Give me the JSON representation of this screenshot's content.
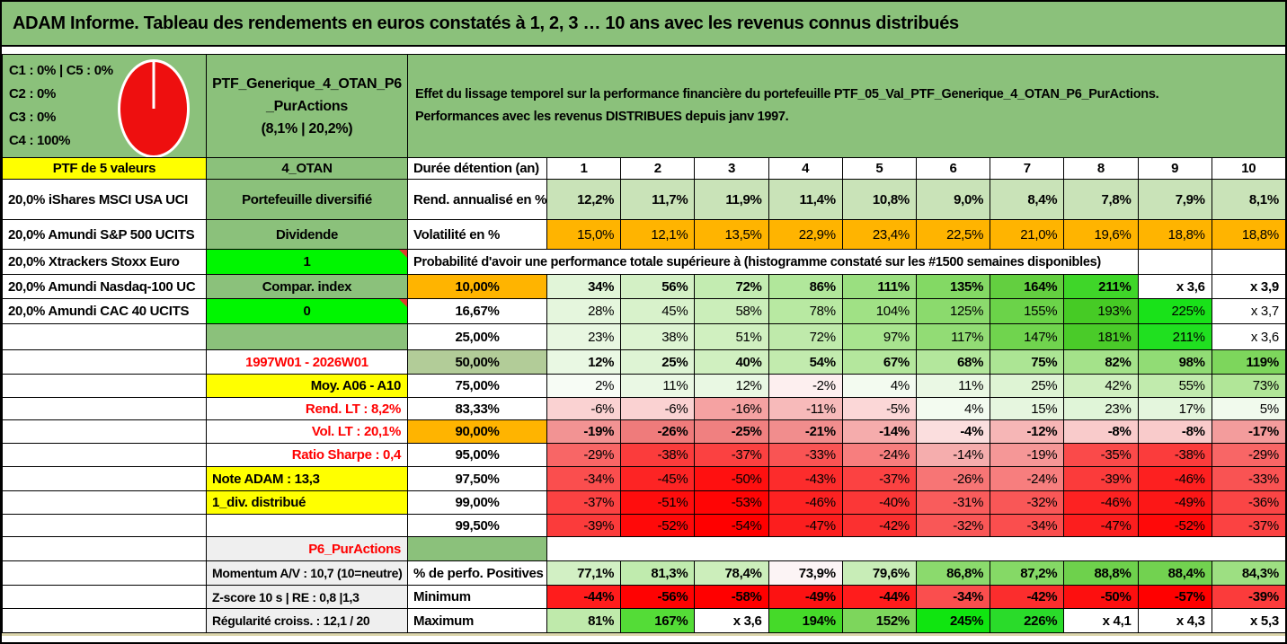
{
  "window": {
    "title": "ADAM Informe. Tableau des rendements en euros constatés à 1, 2, 3 … 10 ans avec les revenus connus distribués"
  },
  "colors": {
    "header_green": "#8BC17B",
    "bright_green": "#00F600",
    "light_green": "#C9E3B8",
    "sage_green": "#B2CC98",
    "orange": "#FFB400",
    "yellow": "#FFFF00",
    "gray": "#EFEFEF",
    "white": "#FFFFFF",
    "red_text": "#FF0000",
    "pie_red": "#EE0F0F"
  },
  "allocation": {
    "lines": [
      "C1 : 0% | C5 : 0%",
      "C2 : 0%",
      "C3 : 0%",
      "C4 : 100%"
    ],
    "pie": {
      "type": "pie",
      "segments": [
        {
          "label": "C1",
          "value": 0
        },
        {
          "label": "C2",
          "value": 0
        },
        {
          "label": "C3",
          "value": 0
        },
        {
          "label": "C4",
          "value": 100
        },
        {
          "label": "C5",
          "value": 0
        }
      ],
      "color": "#EE0F0F"
    }
  },
  "portfolio": {
    "name_lines": [
      "PTF_Generique_4_OTAN_P6",
      "_PurActions",
      "(8,1% | 20,2%)"
    ]
  },
  "description": {
    "lines": [
      "Effet du lissage temporel sur la performance financière du portefeuille PTF_05_Val_PTF_Generique_4_OTAN_P6_PurActions.",
      "Performances avec les revenus DISTRIBUES depuis janv 1997."
    ]
  },
  "table": {
    "corner": {
      "a": "PTF de 5 valeurs",
      "b": "4_OTAN",
      "c": "Durée détention (an)"
    },
    "columns": [
      "1",
      "2",
      "3",
      "4",
      "5",
      "6",
      "7",
      "8",
      "9",
      "10"
    ],
    "rows": [
      {
        "a": "20,0% iShares MSCI USA UCI",
        "b": {
          "t": "Portefeuille diversifié",
          "bg": "#8BC17B"
        },
        "c": {
          "t": "Rend. annualisé en %",
          "align": "left"
        },
        "bold": true,
        "values": [
          "12,2%",
          "11,7%",
          "11,9%",
          "11,4%",
          "10,8%",
          "9,0%",
          "8,4%",
          "7,8%",
          "7,9%",
          "8,1%"
        ],
        "bgs": [
          "#C9E3B8",
          "#C9E3B8",
          "#C9E3B8",
          "#C9E3B8",
          "#C9E3B8",
          "#C9E3B8",
          "#C9E3B8",
          "#C9E3B8",
          "#C9E3B8",
          "#C9E3B8"
        ]
      },
      {
        "a": "20,0% Amundi S&P 500 UCITS",
        "b": {
          "t": "Dividende",
          "bg": "#8BC17B"
        },
        "c": {
          "t": "Volatilité en %",
          "align": "left"
        },
        "bold": false,
        "values": [
          "15,0%",
          "12,1%",
          "13,5%",
          "22,9%",
          "23,4%",
          "22,5%",
          "21,0%",
          "19,6%",
          "18,8%",
          "18,8%"
        ],
        "bgs": [
          "#FFB400",
          "#FFB400",
          "#FFB400",
          "#FFB400",
          "#FFB400",
          "#FFB400",
          "#FFB400",
          "#FFB400",
          "#FFB400",
          "#FFB400"
        ]
      },
      {
        "a": "20,0% Xtrackers Stoxx Euro",
        "b": {
          "t": "1",
          "bg": "#00F600",
          "marker": true
        },
        "type": "span",
        "span_text": "Probabilité d'avoir une performance totale supérieure à (histogramme constaté sur les #1500 semaines disponibles)"
      },
      {
        "a": "20,0% Amundi Nasdaq-100 UC",
        "b": {
          "t": "Compar. index",
          "bg": "#8BC17B"
        },
        "c": {
          "t": "10,00%",
          "bg": "#FFB400"
        },
        "bold": true,
        "values": [
          "34%",
          "56%",
          "72%",
          "86%",
          "111%",
          "135%",
          "164%",
          "211%",
          "x 3,6",
          "x 3,9"
        ],
        "bgs": [
          "#E1F5D8",
          "#D3F0C5",
          "#C3ECB1",
          "#B1E79B",
          "#9ADF80",
          "#83D964",
          "#63CF40",
          "#3FD629",
          "#FFFFFF",
          "#FFFFFF"
        ]
      },
      {
        "a": "20,0% Amundi CAC 40 UCITS",
        "b": {
          "t": "0",
          "bg": "#00F600",
          "marker": true
        },
        "c": {
          "t": "16,67%"
        },
        "bold": false,
        "values": [
          "28%",
          "45%",
          "58%",
          "78%",
          "104%",
          "125%",
          "155%",
          "193%",
          "225%",
          "x 3,7"
        ],
        "bgs": [
          "#E5F6DD",
          "#D8F2CB",
          "#CBEEBA",
          "#B8E9A2",
          "#A0E185",
          "#8BDA6D",
          "#6BD349",
          "#46CB25",
          "#19E219",
          "#FFFFFF"
        ]
      },
      {
        "a": "",
        "b": {
          "t": "",
          "bg": "#8BC17B"
        },
        "c": {
          "t": "25,00%"
        },
        "bold": false,
        "values": [
          "23%",
          "38%",
          "51%",
          "72%",
          "97%",
          "117%",
          "147%",
          "181%",
          "211%",
          "x 3,6"
        ],
        "bgs": [
          "#E8F7E1",
          "#DDF4D2",
          "#D0F0C0",
          "#BFEAAB",
          "#A8E48F",
          "#92DC75",
          "#70D44E",
          "#4ACB29",
          "#20E020",
          "#FFFFFF"
        ]
      },
      {
        "a": "",
        "b": {
          "t": "1997W01 - 2026W01",
          "bg": "#FFFFFF",
          "fg": "#FF0000"
        },
        "c": {
          "t": "50,00%",
          "bg": "#B2CC98"
        },
        "bold": true,
        "values": [
          "12%",
          "25%",
          "40%",
          "54%",
          "67%",
          "68%",
          "75%",
          "82%",
          "98%",
          "119%"
        ],
        "bgs": [
          "#E9F8E3",
          "#DEF4D4",
          "#D0F0C0",
          "#C2EBAE",
          "#B4E79D",
          "#B3E79C",
          "#ACE594",
          "#A4E28A",
          "#91DC75",
          "#7DD65C"
        ]
      },
      {
        "a": "",
        "b": {
          "t": "Moy. A06 - A10",
          "bg": "#FFFF00",
          "align": "right"
        },
        "c": {
          "t": "75,00%"
        },
        "bold": false,
        "values": [
          "2%",
          "11%",
          "12%",
          "-2%",
          "4%",
          "11%",
          "25%",
          "42%",
          "55%",
          "73%"
        ],
        "bgs": [
          "#F7FCF5",
          "#EAF8E4",
          "#E9F8E3",
          "#FDEFEF",
          "#F3FBF0",
          "#EAF8E4",
          "#DEF4D4",
          "#CFEFBF",
          "#C1EBAD",
          "#B1E698"
        ]
      },
      {
        "a": "",
        "b": {
          "t": "Rend. LT : 8,2%",
          "bg": "#FFFFFF",
          "fg": "#FF0000",
          "align": "right"
        },
        "c": {
          "t": "83,33%"
        },
        "bold": false,
        "values": [
          "-6%",
          "-6%",
          "-16%",
          "-11%",
          "-5%",
          "4%",
          "15%",
          "23%",
          "17%",
          "5%"
        ],
        "bgs": [
          "#FAD2D2",
          "#FAD2D2",
          "#F5A2A2",
          "#F7BABA",
          "#FBD7D7",
          "#F3FBF0",
          "#E6F6DF",
          "#E0F5D8",
          "#E4F6DD",
          "#F1FAED"
        ]
      },
      {
        "a": "",
        "b": {
          "t": "Vol. LT : 20,1%",
          "bg": "#FFFFFF",
          "fg": "#FF0000",
          "align": "right"
        },
        "c": {
          "t": "90,00%",
          "bg": "#FFB400"
        },
        "bold": true,
        "values": [
          "-19%",
          "-26%",
          "-25%",
          "-21%",
          "-14%",
          "-4%",
          "-12%",
          "-8%",
          "-8%",
          "-17%"
        ],
        "bgs": [
          "#F29393",
          "#EF7B7B",
          "#F08080",
          "#F18D8D",
          "#F5ACAC",
          "#FBDEDE",
          "#F6B6B6",
          "#F9CBCB",
          "#F9CBCB",
          "#F39C9C"
        ]
      },
      {
        "a": "",
        "b": {
          "t": "Ratio Sharpe : 0,4",
          "bg": "#FFFFFF",
          "fg": "#FF0000",
          "align": "right"
        },
        "c": {
          "t": "95,00%"
        },
        "bold": false,
        "values": [
          "-29%",
          "-38%",
          "-37%",
          "-33%",
          "-24%",
          "-14%",
          "-19%",
          "-35%",
          "-38%",
          "-29%"
        ],
        "bgs": [
          "#F86666",
          "#FB3C3C",
          "#FB4141",
          "#F95454",
          "#F77E7E",
          "#F5ADAD",
          "#F59797",
          "#FA4A4A",
          "#FB3C3C",
          "#F86666"
        ]
      },
      {
        "a": "",
        "b": {
          "t": "Note ADAM : 13,3",
          "bg": "#FFFF00",
          "align": "left"
        },
        "c": {
          "t": "97,50%"
        },
        "bold": false,
        "values": [
          "-34%",
          "-45%",
          "-50%",
          "-43%",
          "-37%",
          "-26%",
          "-24%",
          "-39%",
          "-46%",
          "-33%"
        ],
        "bgs": [
          "#FA4E4E",
          "#FD2424",
          "#FF1010",
          "#FC2C2C",
          "#FB4242",
          "#F77575",
          "#F77E7E",
          "#FB3B3B",
          "#FD2020",
          "#F95353"
        ]
      },
      {
        "a": "",
        "b": {
          "t": "1_div. distribué",
          "bg": "#FFFF00",
          "align": "left"
        },
        "c": {
          "t": "99,00%"
        },
        "bold": false,
        "values": [
          "-37%",
          "-51%",
          "-53%",
          "-46%",
          "-40%",
          "-31%",
          "-32%",
          "-46%",
          "-49%",
          "-36%"
        ],
        "bgs": [
          "#FB4242",
          "#FF0D0D",
          "#FF0505",
          "#FD2222",
          "#FB3737",
          "#F95C5C",
          "#F95757",
          "#FD2222",
          "#FC1717",
          "#FA4545"
        ]
      },
      {
        "a": "",
        "b": {
          "t": "",
          "bg": "#FFFFFF"
        },
        "c": {
          "t": "99,50%"
        },
        "bold": false,
        "values": [
          "-39%",
          "-52%",
          "-54%",
          "-47%",
          "-42%",
          "-32%",
          "-34%",
          "-47%",
          "-52%",
          "-37%"
        ],
        "bgs": [
          "#FB3B3B",
          "#FF0909",
          "#FF0000",
          "#FC1E1E",
          "#FB3030",
          "#F95757",
          "#FA4E4E",
          "#FC1E1E",
          "#FF0909",
          "#FB4242"
        ]
      },
      {
        "a": "",
        "b": {
          "t": "P6_PurActions",
          "bg": "#EFEFEF",
          "fg": "#FF0000",
          "align": "right"
        },
        "type": "merged",
        "c": {
          "t": "",
          "bg": "#8BC17B"
        }
      },
      {
        "a": "",
        "b": {
          "t": "Momentum A/V : 10,7 (10=neutre)",
          "bg": "#EFEFEF",
          "align": "left",
          "small": true
        },
        "c": {
          "t": "% de perfo. Positives",
          "align": "left"
        },
        "bold": true,
        "values": [
          "77,1%",
          "81,3%",
          "78,4%",
          "73,9%",
          "79,6%",
          "86,8%",
          "87,2%",
          "88,8%",
          "88,4%",
          "84,3%"
        ],
        "bgs": [
          "#D2F0C4",
          "#C0EBAE",
          "#CCEEBB",
          "#FCF4F5",
          "#C8EDB7",
          "#8BDA6D",
          "#85D966",
          "#6ED14C",
          "#72D250",
          "#9DDF82"
        ]
      },
      {
        "a": "",
        "b": {
          "t": "Z-score 10 s | RE : 0,8 |1,3",
          "bg": "#EFEFEF",
          "align": "left",
          "small": true
        },
        "c": {
          "t": "Minimum",
          "align": "left"
        },
        "bold": true,
        "values": [
          "-44%",
          "-56%",
          "-58%",
          "-49%",
          "-44%",
          "-34%",
          "-42%",
          "-50%",
          "-57%",
          "-39%"
        ],
        "bgs": [
          "#FF1C1C",
          "#FF0202",
          "#FF0000",
          "#FC1212",
          "#FF1C1C",
          "#FA4E4E",
          "#FB2D2D",
          "#FD0F0F",
          "#FF0000",
          "#FB3B3B"
        ]
      },
      {
        "a": "",
        "b": {
          "t": "Régularité croiss. : 12,1 / 20",
          "bg": "#EFEFEF",
          "align": "left",
          "small": true
        },
        "c": {
          "t": "Maximum",
          "align": "left"
        },
        "bold": true,
        "values": [
          "81%",
          "167%",
          "x 3,6",
          "194%",
          "152%",
          "245%",
          "226%",
          "x 4,1",
          "x 4,3",
          "x 5,3"
        ],
        "bgs": [
          "#BFEAAB",
          "#54DC37",
          "#FFFFFF",
          "#45DA29",
          "#7DD65C",
          "#10E510",
          "#2ADB2A",
          "#FFFFFF",
          "#FFFFFF",
          "#FFFFFF"
        ]
      }
    ]
  }
}
